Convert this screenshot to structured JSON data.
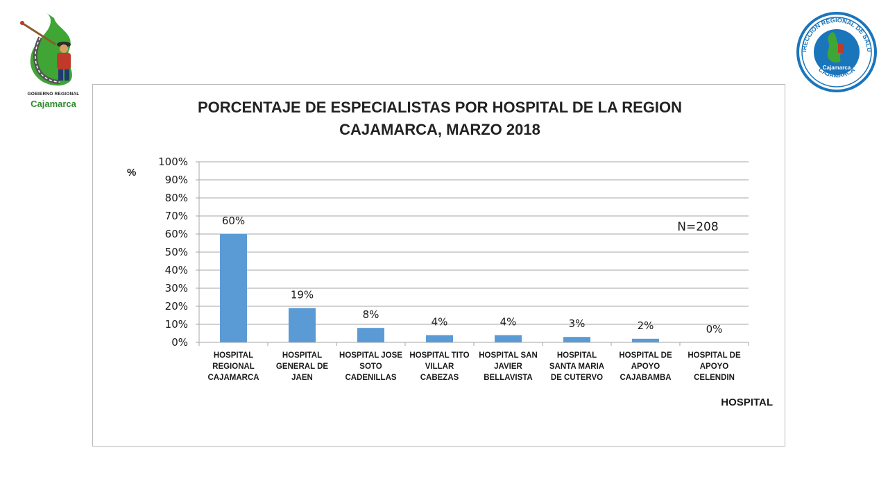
{
  "logos": {
    "left_caption_top": "GOBIERNO REGIONAL",
    "left_caption_bottom": "Cajamarca",
    "right_ring_top": "DIRECCION REGIONAL DE SALUD",
    "right_ring_bottom": "CAJAMARCA",
    "right_center": "Cajamarca"
  },
  "chart_data": {
    "type": "bar",
    "title_lines": [
      "PORCENTAJE DE ESPECIALISTAS POR HOSPITAL DE LA REGION",
      "CAJAMARCA, MARZO 2018"
    ],
    "ylabel": "%",
    "xlabel": "HOSPITAL",
    "note": "N=208",
    "ylim": [
      0,
      100
    ],
    "yticks": [
      "0%",
      "10%",
      "20%",
      "30%",
      "40%",
      "50%",
      "60%",
      "70%",
      "80%",
      "90%",
      "100%"
    ],
    "grid": true,
    "bar_color": "#5b9bd5",
    "categories": [
      [
        "HOSPITAL",
        "REGIONAL",
        "CAJAMARCA"
      ],
      [
        "HOSPITAL",
        "GENERAL DE",
        "JAEN"
      ],
      [
        "HOSPITAL JOSE",
        "SOTO",
        "CADENILLAS"
      ],
      [
        "HOSPITAL TITO",
        "VILLAR",
        "CABEZAS"
      ],
      [
        "HOSPITAL SAN",
        "JAVIER",
        "BELLAVISTA"
      ],
      [
        "HOSPITAL",
        "SANTA MARIA",
        "DE CUTERVO"
      ],
      [
        "HOSPITAL DE",
        "APOYO",
        "CAJABAMBA"
      ],
      [
        "HOSPITAL DE",
        "APOYO",
        "CELENDIN"
      ]
    ],
    "values": [
      60,
      19,
      8,
      4,
      4,
      3,
      2,
      0
    ],
    "data_labels": [
      "60%",
      "19%",
      "8%",
      "4%",
      "4%",
      "3%",
      "2%",
      "0%"
    ]
  }
}
